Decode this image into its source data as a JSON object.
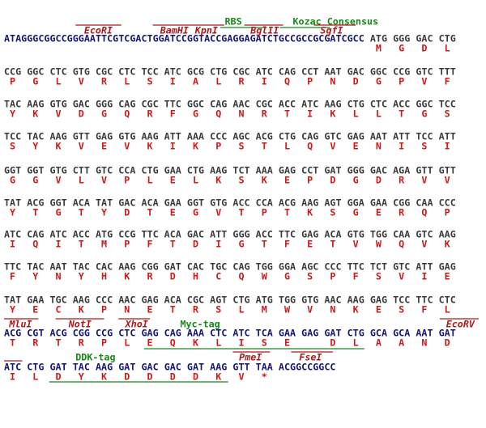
{
  "rows": [
    {
      "leader": "ATAGGGCGGCCGGGAATTCGTCGACTGGATCCGGTACCGAGGAGATCTGCCGCCGCGATCGCC",
      "codons": "ATG GGG GAC CTG",
      "protein": [
        "M",
        "G",
        "D",
        "L"
      ],
      "features": [
        "RBS",
        "Kozac Consensus",
        "EcoRI",
        "BamHI",
        "KpnI",
        "BglII",
        "SgfI"
      ]
    },
    {
      "codons": "CCG GGC CTC GTG CGC CTC TCC ATC GCG CTG CGC ATC CAG CCT AAT GAC GGC CCG GTC TTT",
      "protein": [
        "P",
        "G",
        "L",
        "V",
        "R",
        "L",
        "S",
        "I",
        "A",
        "L",
        "R",
        "I",
        "Q",
        "P",
        "N",
        "D",
        "G",
        "P",
        "V",
        "F"
      ]
    },
    {
      "codons": "TAC AAG GTG GAC GGG CAG CGC TTC GGC CAG AAC CGC ACC ATC AAG CTG CTC ACC GGC TCC",
      "protein": [
        "Y",
        "K",
        "V",
        "D",
        "G",
        "Q",
        "R",
        "F",
        "G",
        "Q",
        "N",
        "R",
        "T",
        "I",
        "K",
        "L",
        "L",
        "T",
        "G",
        "S"
      ]
    },
    {
      "codons": "TCC TAC AAG GTT GAG GTG AAG ATT AAA CCC AGC ACG CTG CAG GTC GAG AAT ATT TCC ATT",
      "protein": [
        "S",
        "Y",
        "K",
        "V",
        "E",
        "V",
        "K",
        "I",
        "K",
        "P",
        "S",
        "T",
        "L",
        "Q",
        "V",
        "E",
        "N",
        "I",
        "S",
        "I"
      ]
    },
    {
      "codons": "GGT GGT GTG CTT GTC CCA CTG GAA CTG AAG TCT AAA GAG CCT GAT GGG GAC AGA GTT GTT",
      "protein": [
        "G",
        "G",
        "V",
        "L",
        "V",
        "P",
        "L",
        "E",
        "L",
        "K",
        "S",
        "K",
        "E",
        "P",
        "D",
        "G",
        "D",
        "R",
        "V",
        "V"
      ]
    },
    {
      "codons": "TAT ACG GGT ACA TAT GAC ACA GAA GGT GTG ACC CCA ACG AAG AGT GGA GAA CGG CAA CCC",
      "protein": [
        "Y",
        "T",
        "G",
        "T",
        "Y",
        "D",
        "T",
        "E",
        "G",
        "V",
        "T",
        "P",
        "T",
        "K",
        "S",
        "G",
        "E",
        "R",
        "Q",
        "P"
      ]
    },
    {
      "codons": "ATC CAG ATC ACC ATG CCG TTC ACA GAC ATT GGG ACC TTC GAG ACA GTG TGG CAA GTC AAG",
      "protein": [
        "I",
        "Q",
        "I",
        "T",
        "M",
        "P",
        "F",
        "T",
        "D",
        "I",
        "G",
        "T",
        "F",
        "E",
        "T",
        "V",
        "W",
        "Q",
        "V",
        "K"
      ]
    },
    {
      "codons": "TTC TAC AAT TAC CAC AAG CGG GAT CAC TGC CAG TGG GGA AGC CCC TTC TCT GTC ATT GAG",
      "protein": [
        "F",
        "Y",
        "N",
        "Y",
        "H",
        "K",
        "R",
        "D",
        "H",
        "C",
        "Q",
        "W",
        "G",
        "S",
        "P",
        "F",
        "S",
        "V",
        "I",
        "E"
      ]
    },
    {
      "codons": "TAT GAA TGC AAG CCC AAC GAG ACA CGC AGT CTG ATG TGG GTG AAC AAG GAG TCC TTC CTC",
      "protein": [
        "Y",
        "E",
        "C",
        "K",
        "P",
        "N",
        "E",
        "T",
        "R",
        "S",
        "L",
        "M",
        "W",
        "V",
        "N",
        "K",
        "E",
        "S",
        "F",
        "L"
      ]
    },
    {
      "codons": "ACG CGT ACG CGG CCG CTC GAG CAG AAA CTC ATC TCA GAA GAG GAT CTG GCA GCA AAT GAT",
      "protein": [
        "T",
        "R",
        "T",
        "R",
        "P",
        "L",
        "E",
        "Q",
        "K",
        "L",
        "I",
        "S",
        "E",
        null,
        "D",
        "L",
        "A",
        "A",
        "N",
        "D"
      ],
      "features": [
        "MluI",
        "NotI",
        "XhoI",
        "Myc-tag",
        "EcoRV"
      ]
    },
    {
      "codons": "ATC CTG GAT TAC AAG GAT GAC GAC GAT AAG GTT TAA",
      "trailer": "ACGGCCGGCC",
      "protein": [
        "I",
        "L",
        "D",
        "Y",
        "K",
        "D",
        "D",
        "D",
        "D",
        "K",
        "V",
        "*"
      ],
      "features": [
        "DDK-tag",
        "PmeI",
        "FseI"
      ]
    }
  ]
}
